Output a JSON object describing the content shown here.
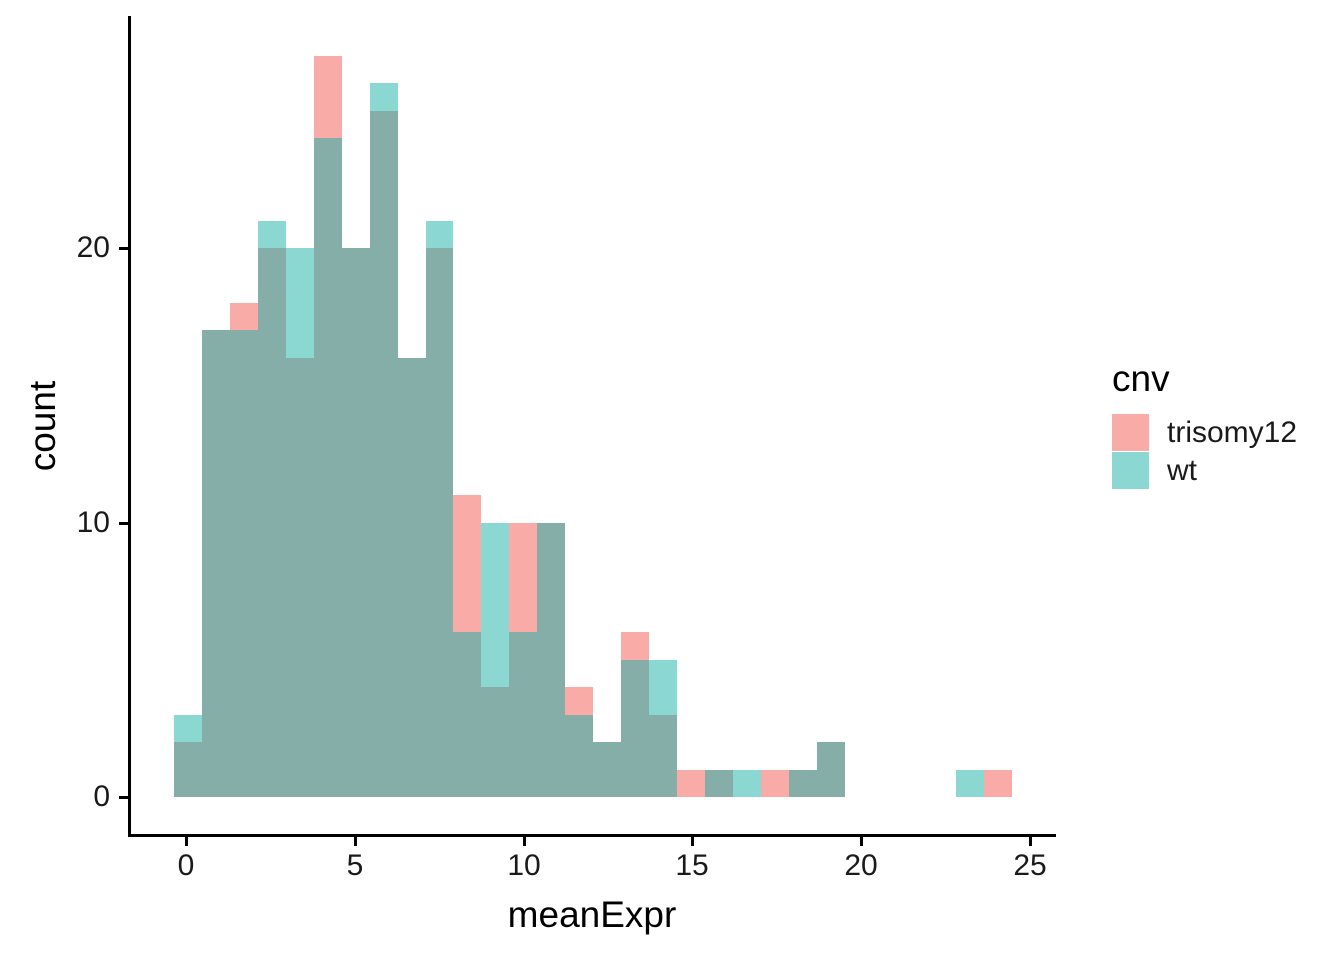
{
  "x_axis": {
    "title": "meanExpr"
  },
  "y_axis": {
    "title": "count"
  },
  "legend": {
    "title": "cnv",
    "items": [
      {
        "label": "trisomy12",
        "color": "#F8ABA7"
      },
      {
        "label": "wt",
        "color": "#8BD8D3"
      }
    ]
  },
  "chart_data": {
    "type": "histogram",
    "title": "",
    "xlabel": "meanExpr",
    "ylabel": "count",
    "legend_title": "cnv",
    "legend_position": "right",
    "grid": false,
    "x_ticks": [
      0,
      5,
      10,
      15,
      20,
      25
    ],
    "y_ticks": [
      0,
      10,
      20
    ],
    "xlim": [
      -1.6,
      25.7
    ],
    "ylim": [
      0,
      28.4
    ],
    "bin_width": 0.828,
    "series_names": [
      "trisomy12",
      "wt"
    ],
    "colors": {
      "trisomy12": "#F8ABA7",
      "wt": "#8BD8D3",
      "overlap": "#86AEA9",
      "axis": "#000000",
      "tick_text": "#1a1a1a"
    },
    "bins": [
      {
        "x0": -0.353,
        "x1": 0.475,
        "trisomy12": 2,
        "wt": 3
      },
      {
        "x0": 0.475,
        "x1": 1.302,
        "trisomy12": 17,
        "wt": 17
      },
      {
        "x0": 1.302,
        "x1": 2.13,
        "trisomy12": 18,
        "wt": 17
      },
      {
        "x0": 2.13,
        "x1": 2.957,
        "trisomy12": 20,
        "wt": 21
      },
      {
        "x0": 2.957,
        "x1": 3.785,
        "trisomy12": 16,
        "wt": 20
      },
      {
        "x0": 3.785,
        "x1": 4.613,
        "trisomy12": 27,
        "wt": 24
      },
      {
        "x0": 4.613,
        "x1": 5.44,
        "trisomy12": 20,
        "wt": 20
      },
      {
        "x0": 5.44,
        "x1": 6.268,
        "trisomy12": 25,
        "wt": 26
      },
      {
        "x0": 6.268,
        "x1": 7.095,
        "trisomy12": 16,
        "wt": 16
      },
      {
        "x0": 7.095,
        "x1": 7.923,
        "trisomy12": 20,
        "wt": 21
      },
      {
        "x0": 7.923,
        "x1": 8.751,
        "trisomy12": 11,
        "wt": 6
      },
      {
        "x0": 8.751,
        "x1": 9.578,
        "trisomy12": 4,
        "wt": 10
      },
      {
        "x0": 9.578,
        "x1": 10.406,
        "trisomy12": 10,
        "wt": 6
      },
      {
        "x0": 10.406,
        "x1": 11.233,
        "trisomy12": 10,
        "wt": 10
      },
      {
        "x0": 11.233,
        "x1": 12.061,
        "trisomy12": 4,
        "wt": 3
      },
      {
        "x0": 12.061,
        "x1": 12.889,
        "trisomy12": 2,
        "wt": 2
      },
      {
        "x0": 12.889,
        "x1": 13.716,
        "trisomy12": 6,
        "wt": 5
      },
      {
        "x0": 13.716,
        "x1": 14.544,
        "trisomy12": 3,
        "wt": 5
      },
      {
        "x0": 14.544,
        "x1": 15.371,
        "trisomy12": 1,
        "wt": 0
      },
      {
        "x0": 15.371,
        "x1": 16.199,
        "trisomy12": 1,
        "wt": 1
      },
      {
        "x0": 16.199,
        "x1": 17.027,
        "trisomy12": 0,
        "wt": 1
      },
      {
        "x0": 17.027,
        "x1": 17.854,
        "trisomy12": 1,
        "wt": 0
      },
      {
        "x0": 17.854,
        "x1": 18.682,
        "trisomy12": 1,
        "wt": 1
      },
      {
        "x0": 18.682,
        "x1": 19.509,
        "trisomy12": 2,
        "wt": 2
      },
      {
        "x0": 19.509,
        "x1": 20.337,
        "trisomy12": 0,
        "wt": 0
      },
      {
        "x0": 20.337,
        "x1": 21.165,
        "trisomy12": 0,
        "wt": 0
      },
      {
        "x0": 21.165,
        "x1": 21.992,
        "trisomy12": 0,
        "wt": 0
      },
      {
        "x0": 21.992,
        "x1": 22.82,
        "trisomy12": 0,
        "wt": 0
      },
      {
        "x0": 22.82,
        "x1": 23.647,
        "trisomy12": 0,
        "wt": 1
      },
      {
        "x0": 23.647,
        "x1": 24.475,
        "trisomy12": 1,
        "wt": 0
      }
    ]
  }
}
